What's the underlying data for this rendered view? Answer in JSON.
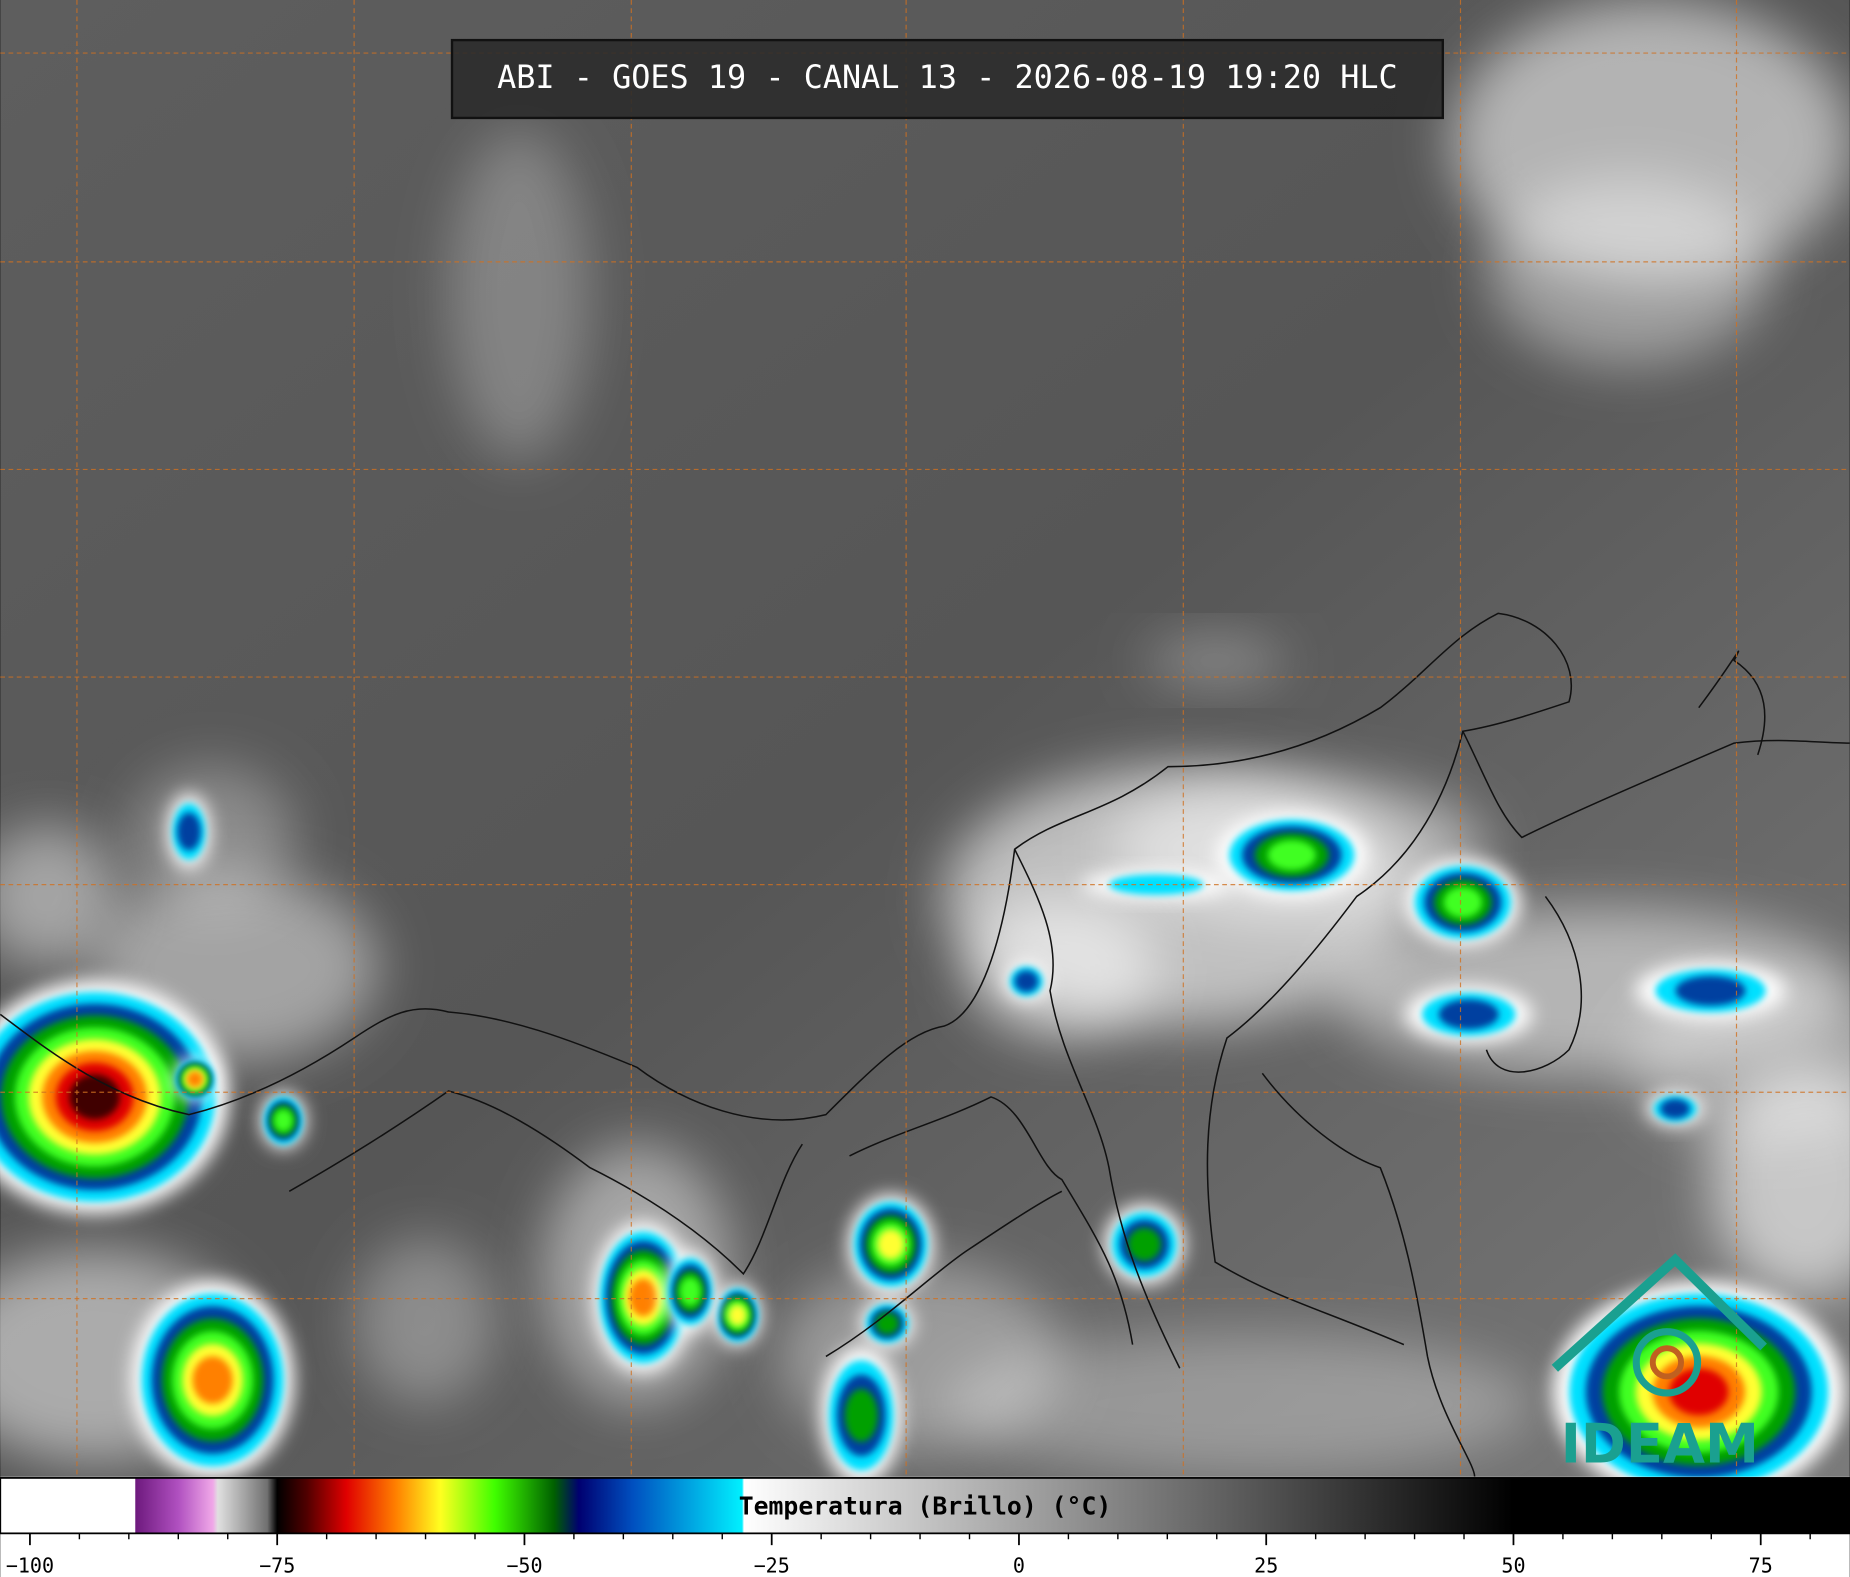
{
  "chart_data": {
    "type": "colorbar",
    "title": "ABI - GOES 19 - CANAL 13 - 2026-08-19 19:20 HLC",
    "colorbar_label": "Temperatura (Brillo) (°C)",
    "logo": "IDEAM",
    "xlim": [
      -103,
      84
    ],
    "xticks": [
      {
        "value": -100,
        "label": "−100"
      },
      {
        "value": -75,
        "label": "−75"
      },
      {
        "value": -50,
        "label": "−50"
      },
      {
        "value": -25,
        "label": "−25"
      },
      0,
      25,
      50,
      75
    ],
    "minor_xticks": [
      -95,
      -90,
      -85,
      -80,
      -70,
      -65,
      -60,
      -55,
      -45,
      -40,
      -35,
      -30,
      -20,
      -15,
      -10,
      -5,
      5,
      10,
      15,
      20,
      30,
      35,
      40,
      45,
      55,
      60,
      65,
      70,
      80
    ],
    "colormap": [
      [
        -103,
        "#ffffff"
      ],
      [
        -89.4,
        "#ffffff"
      ],
      [
        -89.3,
        "#6e1a7e"
      ],
      [
        -85,
        "#b050c0"
      ],
      [
        -81.5,
        "#f0a8e8"
      ],
      [
        -81,
        "#e0e0e0"
      ],
      [
        -76,
        "#707070"
      ],
      [
        -75,
        "#000000"
      ],
      [
        -72,
        "#500000"
      ],
      [
        -68,
        "#e00000"
      ],
      [
        -63,
        "#ff8000"
      ],
      [
        -58.5,
        "#ffff20"
      ],
      [
        -53,
        "#40ff00"
      ],
      [
        -47,
        "#006000"
      ],
      [
        -44.5,
        "#000070"
      ],
      [
        -39,
        "#0050c0"
      ],
      [
        -28,
        "#00f0ff"
      ],
      [
        -27.8,
        "#ffffff"
      ],
      [
        50,
        "#000000"
      ],
      [
        84,
        "#000000"
      ]
    ]
  }
}
